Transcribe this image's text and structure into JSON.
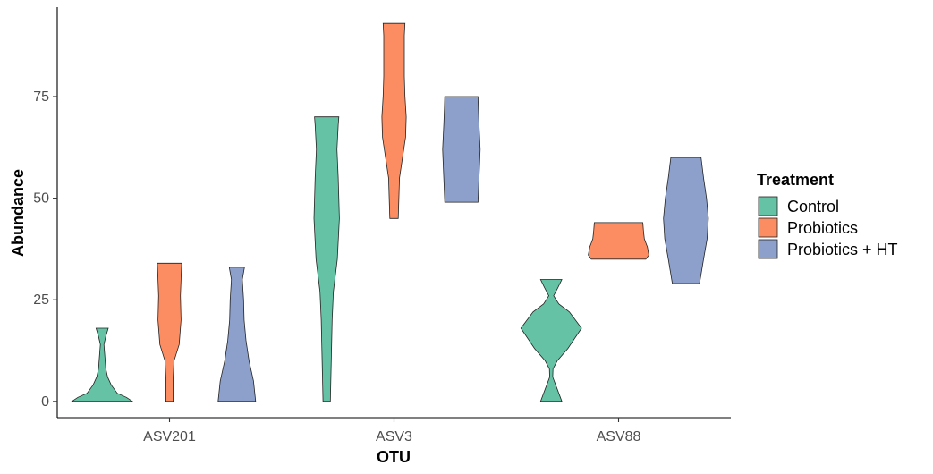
{
  "chart_data": {
    "type": "violin",
    "xlabel": "OTU",
    "ylabel": "Abundance",
    "categories": [
      "ASV201",
      "ASV3",
      "ASV88"
    ],
    "ylim": [
      -4,
      97
    ],
    "yticks": [
      0,
      25,
      50,
      75
    ],
    "legend": {
      "title": "Treatment",
      "position": "right"
    },
    "grid": false,
    "series": [
      {
        "name": "Control",
        "color": "#66C2A5",
        "violins": [
          {
            "category": "ASV201",
            "range": [
              0,
              18
            ],
            "profile": [
              [
                0,
                1.0
              ],
              [
                1,
                0.8
              ],
              [
                2,
                0.5
              ],
              [
                4,
                0.3
              ],
              [
                6,
                0.18
              ],
              [
                8,
                0.12
              ],
              [
                10,
                0.1
              ],
              [
                12,
                0.08
              ],
              [
                14,
                0.06
              ],
              [
                16,
                0.12
              ],
              [
                18,
                0.2
              ]
            ]
          },
          {
            "category": "ASV3",
            "range": [
              0,
              70
            ],
            "profile": [
              [
                0,
                0.12
              ],
              [
                10,
                0.15
              ],
              [
                20,
                0.18
              ],
              [
                27,
                0.22
              ],
              [
                35,
                0.35
              ],
              [
                45,
                0.42
              ],
              [
                55,
                0.38
              ],
              [
                62,
                0.34
              ],
              [
                68,
                0.38
              ],
              [
                70,
                0.4
              ]
            ]
          },
          {
            "category": "ASV88",
            "range": [
              0,
              30
            ],
            "profile": [
              [
                0,
                0.35
              ],
              [
                3,
                0.2
              ],
              [
                6,
                0.05
              ],
              [
                8,
                0.06
              ],
              [
                10,
                0.2
              ],
              [
                13,
                0.55
              ],
              [
                18,
                1.0
              ],
              [
                22,
                0.6
              ],
              [
                24,
                0.25
              ],
              [
                26,
                0.08
              ],
              [
                28,
                0.22
              ],
              [
                30,
                0.35
              ]
            ]
          }
        ]
      },
      {
        "name": "Probiotics",
        "color": "#FC8D62",
        "violins": [
          {
            "category": "ASV201",
            "range": [
              0,
              34
            ],
            "profile": [
              [
                0,
                0.12
              ],
              [
                6,
                0.12
              ],
              [
                10,
                0.15
              ],
              [
                14,
                0.32
              ],
              [
                20,
                0.38
              ],
              [
                26,
                0.36
              ],
              [
                30,
                0.38
              ],
              [
                34,
                0.4
              ]
            ]
          },
          {
            "category": "ASV3",
            "range": [
              45,
              93
            ],
            "profile": [
              [
                45,
                0.14
              ],
              [
                50,
                0.16
              ],
              [
                55,
                0.18
              ],
              [
                60,
                0.28
              ],
              [
                65,
                0.38
              ],
              [
                70,
                0.4
              ],
              [
                75,
                0.36
              ],
              [
                80,
                0.34
              ],
              [
                85,
                0.34
              ],
              [
                90,
                0.34
              ],
              [
                93,
                0.36
              ]
            ]
          },
          {
            "category": "ASV88",
            "range": [
              35,
              44
            ],
            "profile": [
              [
                35,
                0.9
              ],
              [
                36,
                1.0
              ],
              [
                38,
                0.95
              ],
              [
                39,
                0.9
              ],
              [
                40,
                0.85
              ],
              [
                42,
                0.82
              ],
              [
                44,
                0.8
              ]
            ]
          }
        ]
      },
      {
        "name": "Probiotics + HT",
        "color": "#8DA0CB",
        "violins": [
          {
            "category": "ASV201",
            "range": [
              0,
              33
            ],
            "profile": [
              [
                0,
                0.62
              ],
              [
                5,
                0.55
              ],
              [
                10,
                0.4
              ],
              [
                15,
                0.3
              ],
              [
                20,
                0.24
              ],
              [
                25,
                0.22
              ],
              [
                30,
                0.18
              ],
              [
                33,
                0.25
              ]
            ]
          },
          {
            "category": "ASV3",
            "range": [
              49,
              75
            ],
            "profile": [
              [
                49,
                0.55
              ],
              [
                55,
                0.58
              ],
              [
                62,
                0.62
              ],
              [
                68,
                0.58
              ],
              [
                72,
                0.56
              ],
              [
                75,
                0.55
              ]
            ]
          },
          {
            "category": "ASV88",
            "range": [
              29,
              60
            ],
            "profile": [
              [
                29,
                0.45
              ],
              [
                35,
                0.58
              ],
              [
                40,
                0.7
              ],
              [
                45,
                0.74
              ],
              [
                50,
                0.68
              ],
              [
                55,
                0.58
              ],
              [
                60,
                0.5
              ]
            ]
          }
        ]
      }
    ]
  }
}
